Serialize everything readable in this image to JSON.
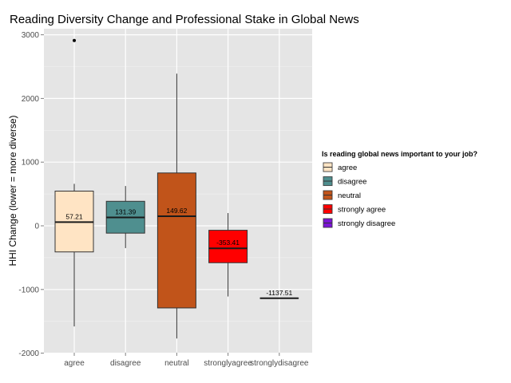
{
  "chart_data": {
    "type": "boxplot",
    "title": "Reading Diversity Change and Professional Stake in Global News",
    "xlabel": "",
    "ylabel": "HHI Change (lower = more diverse)",
    "ylim": [
      -2000,
      3150
    ],
    "yticks": [
      -2000,
      -1000,
      0,
      1000,
      2000,
      3000
    ],
    "yticks_labels": [
      "-2000",
      "-1000",
      "0",
      "1000",
      "2000",
      "3000"
    ],
    "grid": true,
    "legend": {
      "title": "Is reading global news important to your job?",
      "position": "right",
      "entries": [
        "agree",
        "disagree",
        "neutral",
        "strongly agree",
        "strongly disagree"
      ]
    },
    "categories": [
      "agree",
      "disagree",
      "neutral",
      "stronglyagree",
      "stronglydisagree"
    ],
    "boxes": [
      {
        "category": "agree",
        "legend": "agree",
        "color": "#FFE4C4",
        "whisker_low": -1580,
        "q1": -410,
        "median": 57.21,
        "q3": 545,
        "whisker_high": 660,
        "outliers": [
          2910
        ],
        "median_label": "57.21"
      },
      {
        "category": "disagree",
        "legend": "disagree",
        "color": "#4F8F8F",
        "whisker_low": -350,
        "q1": -115,
        "median": 131.39,
        "q3": 385,
        "whisker_high": 625,
        "outliers": [],
        "median_label": "131.39"
      },
      {
        "category": "neutral",
        "legend": "neutral",
        "color": "#C1541A",
        "whisker_low": -1770,
        "q1": -1290,
        "median": 149.62,
        "q3": 830,
        "whisker_high": 2390,
        "outliers": [],
        "median_label": "149.62"
      },
      {
        "category": "stronglyagree",
        "legend": "strongly agree",
        "color": "#FF0000",
        "whisker_low": -1110,
        "q1": -580,
        "median": -353.41,
        "q3": -70,
        "whisker_high": 200,
        "outliers": [],
        "median_label": "-353.41"
      },
      {
        "category": "stronglydisagree",
        "legend": "strongly disagree",
        "color": "#7B16D6",
        "whisker_low": -1137.51,
        "q1": -1137.51,
        "median": -1137.51,
        "q3": -1137.51,
        "whisker_high": -1137.51,
        "outliers": [],
        "median_label": "-1137.51"
      }
    ]
  }
}
